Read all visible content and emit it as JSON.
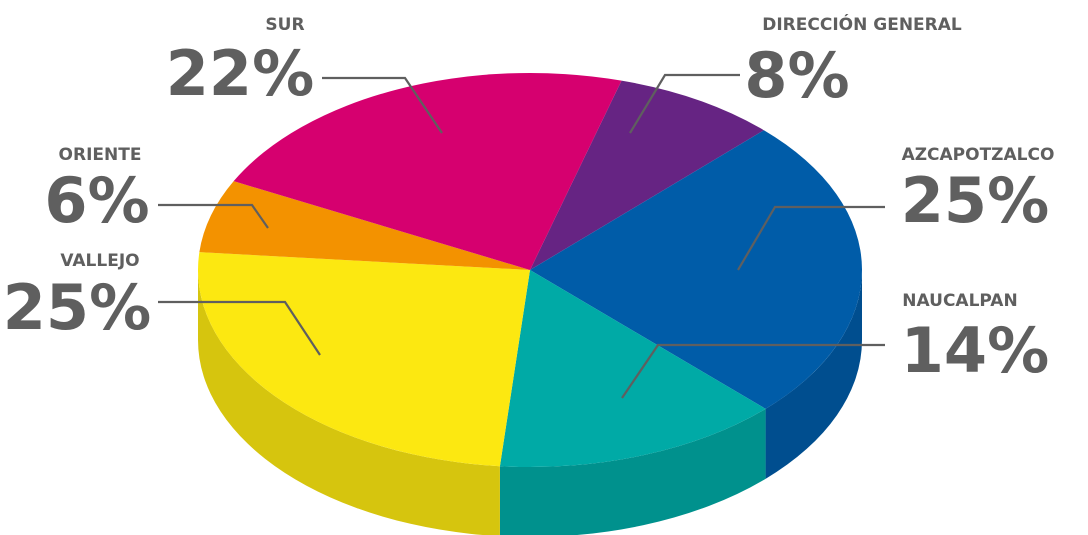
{
  "chart_data": {
    "type": "pie",
    "categories": [
      "DIRECCIÓN GENERAL",
      "AZCAPOTZALCO",
      "NAUCALPAN",
      "VALLEJO",
      "ORIENTE",
      "SUR"
    ],
    "values": [
      8,
      25,
      14,
      25,
      6,
      22
    ],
    "value_labels": [
      "8%",
      "25%",
      "14%",
      "25%",
      "6%",
      "22%"
    ],
    "colors": [
      "#662483",
      "#005ca8",
      "#00aaa6",
      "#fce811",
      "#f39200",
      "#d6006f"
    ]
  }
}
